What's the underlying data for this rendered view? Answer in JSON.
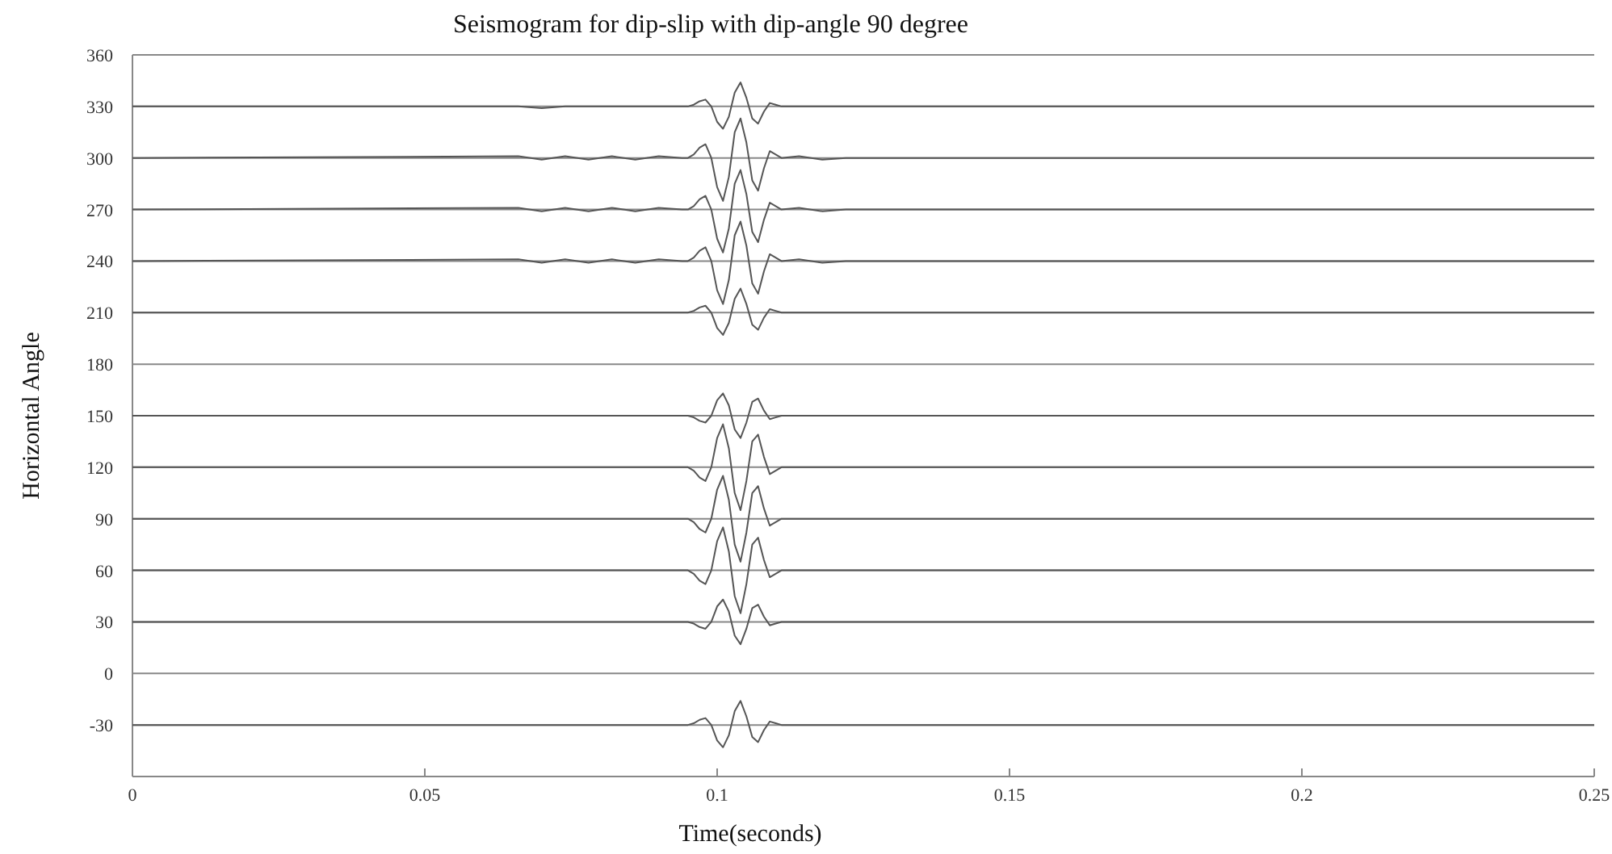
{
  "chart_data": {
    "type": "line",
    "title": "Seismogram for dip-slip with dip-angle 90 degree",
    "xlabel": "Time(seconds)",
    "ylabel": "Horizontal Angle",
    "xlim": [
      0,
      0.25
    ],
    "xticks": [
      0,
      0.05,
      0.1,
      0.15,
      0.2,
      0.25
    ],
    "ylim": [
      -60,
      360
    ],
    "yticks": [
      -30,
      0,
      30,
      60,
      90,
      120,
      150,
      180,
      210,
      240,
      270,
      300,
      330,
      360
    ],
    "grid": "y",
    "marker": "none",
    "line_style": "solid",
    "x": [
      0,
      0.066,
      0.07,
      0.074,
      0.078,
      0.082,
      0.086,
      0.09,
      0.094,
      0.095,
      0.096,
      0.097,
      0.098,
      0.099,
      0.1,
      0.101,
      0.102,
      0.103,
      0.104,
      0.105,
      0.106,
      0.107,
      0.108,
      0.109,
      0.11,
      0.111,
      0.114,
      0.118,
      0.122,
      0.25
    ],
    "series": [
      {
        "color": "#555555",
        "values": [
          -30,
          -30,
          -30,
          -30,
          -30,
          -30,
          -30,
          -30,
          -30,
          -30,
          -29,
          -27,
          -26,
          -30,
          -39,
          -43,
          -36,
          -22,
          -16,
          -25,
          -37,
          -40,
          -33,
          -28,
          -29,
          -30,
          -30,
          -30,
          -30,
          -30
        ]
      },
      {
        "color": "#555555",
        "values": [
          30,
          30,
          30,
          30,
          30,
          30,
          30,
          30,
          30,
          30,
          29,
          27,
          26,
          30,
          39,
          43,
          36,
          22,
          17,
          26,
          38,
          40,
          33,
          28,
          29,
          30,
          30,
          30,
          30,
          30
        ]
      },
      {
        "color": "#555555",
        "values": [
          60,
          60,
          60,
          60,
          60,
          60,
          60,
          60,
          60,
          60,
          58,
          54,
          52,
          60,
          77,
          85,
          71,
          45,
          35,
          52,
          75,
          79,
          66,
          56,
          58,
          60,
          60,
          60,
          60,
          60
        ]
      },
      {
        "color": "#555555",
        "values": [
          90,
          90,
          90,
          90,
          90,
          90,
          90,
          90,
          90,
          90,
          88,
          84,
          82,
          90,
          107,
          115,
          101,
          75,
          65,
          82,
          105,
          109,
          96,
          86,
          88,
          90,
          90,
          90,
          90,
          90
        ]
      },
      {
        "color": "#555555",
        "values": [
          120,
          120,
          120,
          120,
          120,
          120,
          120,
          120,
          120,
          120,
          118,
          114,
          112,
          120,
          137,
          145,
          131,
          105,
          95,
          112,
          135,
          139,
          126,
          116,
          118,
          120,
          120,
          120,
          120,
          120
        ]
      },
      {
        "color": "#555555",
        "values": [
          150,
          150,
          150,
          150,
          150,
          150,
          150,
          150,
          150,
          150,
          149,
          147,
          146,
          150,
          159,
          163,
          156,
          142,
          137,
          146,
          158,
          160,
          153,
          148,
          149,
          150,
          150,
          150,
          150,
          150
        ]
      },
      {
        "color": "#555555",
        "values": [
          210,
          210,
          210,
          210,
          210,
          210,
          210,
          210,
          210,
          210,
          211,
          213,
          214,
          210,
          201,
          197,
          204,
          218,
          224,
          215,
          203,
          200,
          207,
          212,
          211,
          210,
          210,
          210,
          210,
          210
        ]
      },
      {
        "color": "#555555",
        "values": [
          240,
          241,
          239,
          241,
          239,
          241,
          239,
          241,
          240,
          240,
          242,
          246,
          248,
          240,
          223,
          215,
          229,
          255,
          263,
          249,
          227,
          221,
          234,
          244,
          242,
          240,
          241,
          239,
          240,
          240
        ]
      },
      {
        "color": "#555555",
        "values": [
          270,
          271,
          269,
          271,
          269,
          271,
          269,
          271,
          270,
          270,
          272,
          276,
          278,
          270,
          253,
          245,
          259,
          285,
          293,
          279,
          257,
          251,
          264,
          274,
          272,
          270,
          271,
          269,
          270,
          270
        ]
      },
      {
        "color": "#555555",
        "values": [
          300,
          301,
          299,
          301,
          299,
          301,
          299,
          301,
          300,
          300,
          302,
          306,
          308,
          300,
          283,
          275,
          289,
          315,
          323,
          309,
          287,
          281,
          294,
          304,
          302,
          300,
          301,
          299,
          300,
          300
        ]
      },
      {
        "color": "#555555",
        "values": [
          330,
          330,
          329,
          330,
          330,
          330,
          330,
          330,
          330,
          330,
          331,
          333,
          334,
          330,
          321,
          317,
          324,
          338,
          344,
          335,
          323,
          320,
          327,
          332,
          331,
          330,
          330,
          330,
          330,
          330
        ]
      }
    ]
  }
}
